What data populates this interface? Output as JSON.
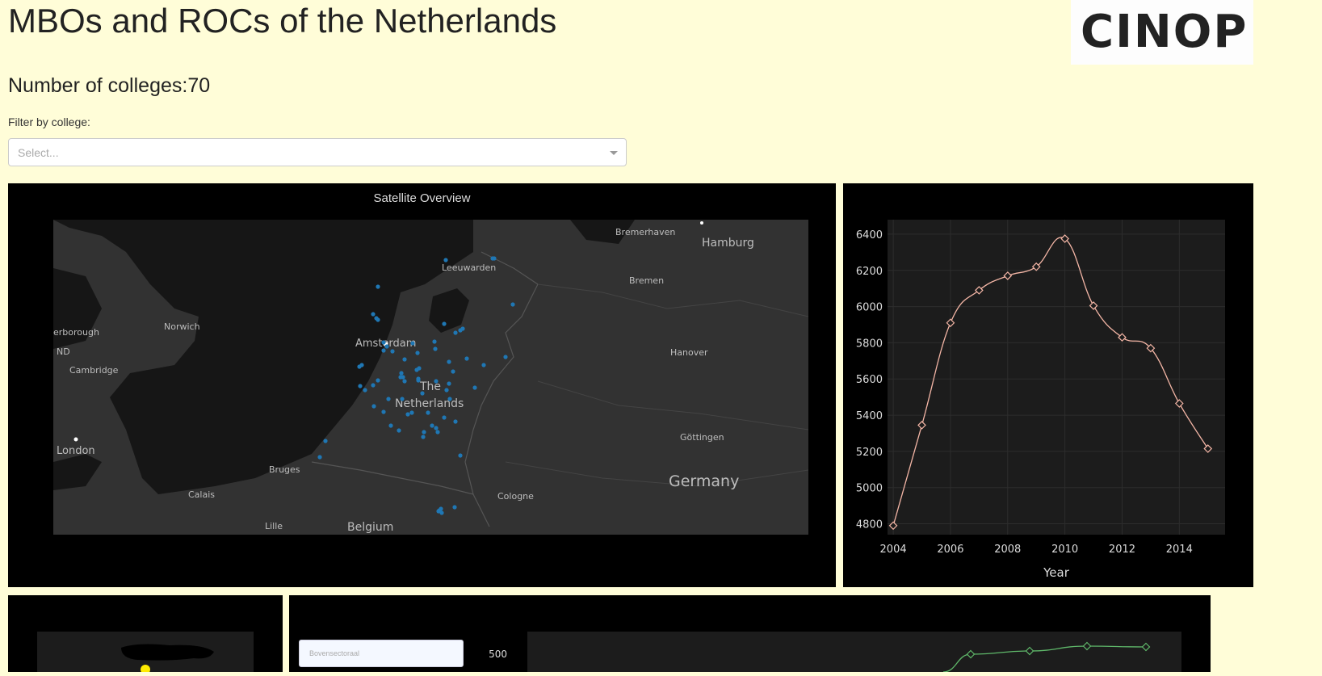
{
  "header": {
    "title": "MBOs and ROCs of the Netherlands",
    "logo_text": "CINOP"
  },
  "summary": {
    "label": "Number of colleges:",
    "value": "70"
  },
  "filter": {
    "label": "Filter by college:",
    "placeholder": "Select..."
  },
  "map": {
    "title": "Satellite Overview",
    "marker_color": "#1f77b4",
    "place_labels": [
      "Bremerhaven",
      "Hamburg",
      "Leeuwarden",
      "Bremen",
      "Norwich",
      "erborough",
      "ND",
      "Amsterdam",
      "Hanover",
      "Cambridge",
      "The",
      "Netherlands",
      "Göttingen",
      "London",
      "Bruges",
      "Germany",
      "Calais",
      "Cologne",
      "Lille",
      "Belgium"
    ],
    "marker_count": 70
  },
  "chart_data": [
    {
      "type": "line",
      "title": "",
      "xlabel": "Year",
      "ylabel": "",
      "x": [
        2004,
        2005,
        2006,
        2007,
        2008,
        2009,
        2010,
        2011,
        2012,
        2013,
        2014,
        2015
      ],
      "y": [
        4790,
        5345,
        5910,
        6090,
        6170,
        6220,
        6375,
        6005,
        5830,
        5770,
        5465,
        5215
      ],
      "xticks": [
        "2004",
        "2006",
        "2008",
        "2010",
        "2012",
        "2014"
      ],
      "yticks": [
        "4800",
        "5000",
        "5200",
        "5400",
        "5600",
        "5800",
        "6000",
        "6200",
        "6400"
      ],
      "xlim": [
        2003.8,
        2015.6
      ],
      "ylim": [
        4740,
        6480
      ],
      "line_color": "#f4b6a6",
      "marker": "diamond-open",
      "grid": true
    },
    {
      "type": "line",
      "title": "",
      "series_color": "#5fb86a",
      "yticks": [
        "500"
      ],
      "marker": "diamond-open"
    }
  ],
  "small_chart": {
    "highlight_color": "#ffeb00"
  },
  "bottom": {
    "dropdown_value": "Bovensectoraal"
  }
}
